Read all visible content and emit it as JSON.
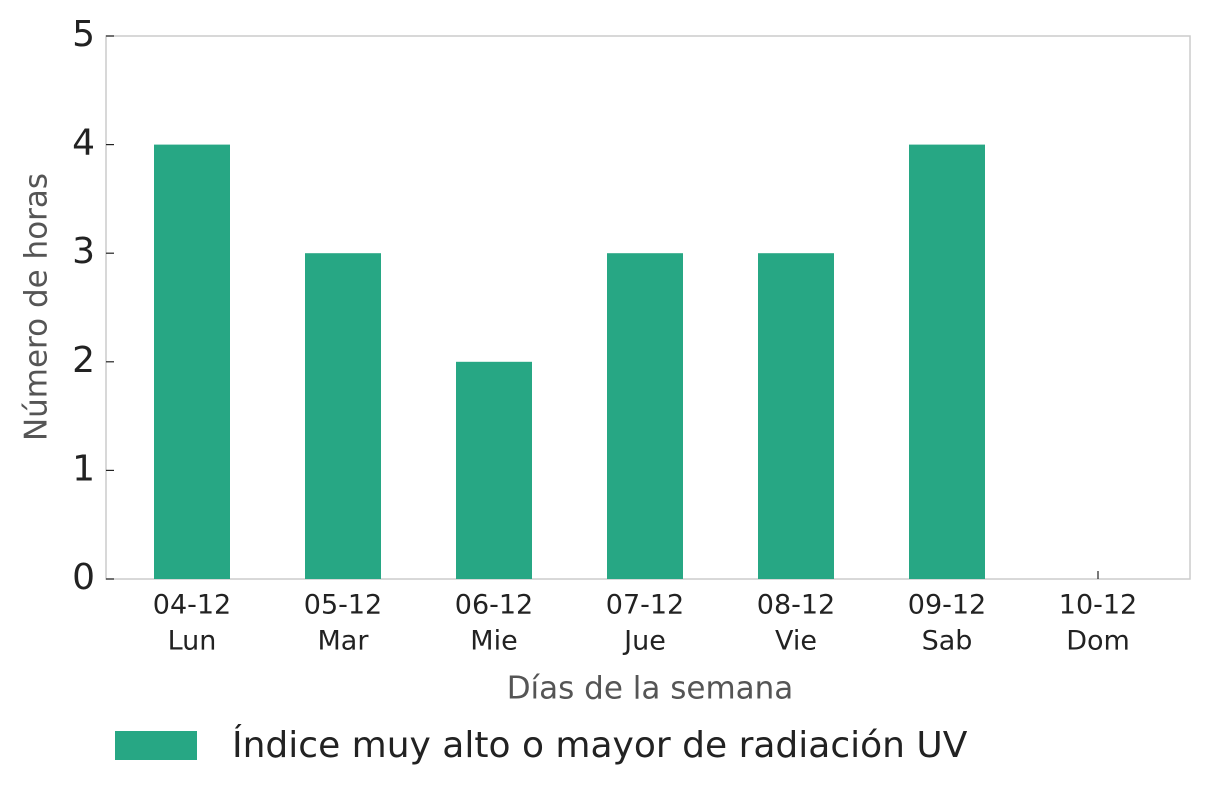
{
  "chart_data": {
    "type": "bar",
    "categories": [
      [
        "04-12",
        "Lun"
      ],
      [
        "05-12",
        "Mar"
      ],
      [
        "06-12",
        "Mie"
      ],
      [
        "07-12",
        "Jue"
      ],
      [
        "08-12",
        "Vie"
      ],
      [
        "09-12",
        "Sab"
      ],
      [
        "10-12",
        "Dom"
      ]
    ],
    "series": [
      {
        "name": "Índice muy alto o mayor de radiación UV",
        "color": "#27a784",
        "values": [
          4,
          3,
          2,
          3,
          3,
          4,
          0
        ]
      }
    ],
    "xlabel": "Días de la semana",
    "ylabel": "Número de horas",
    "ylim": [
      0,
      5
    ],
    "yticks": [
      0,
      1,
      2,
      3,
      4,
      5
    ],
    "grid": false,
    "legend": "lower left"
  }
}
